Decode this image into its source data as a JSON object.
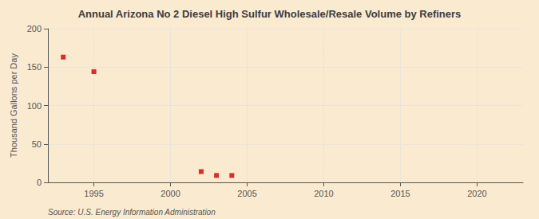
{
  "chart_data": {
    "type": "scatter",
    "title": "Annual Arizona No 2 Diesel High Sulfur Wholesale/Resale Volume by Refiners",
    "ylabel": "Thousand Gallons per Day",
    "annotations": [
      "Source: U.S. Energy Information Administration"
    ],
    "x": [
      1993,
      1995,
      2002,
      2003,
      2004
    ],
    "values": [
      163,
      144,
      14,
      9,
      9
    ],
    "color": "#cc0000",
    "marker": "square",
    "xlim": [
      1992,
      2023
    ],
    "ylim": [
      0,
      200
    ],
    "xticks": [
      1995,
      2000,
      2005,
      2010,
      2015,
      2020
    ],
    "yticks": [
      0,
      50,
      100,
      150,
      200
    ],
    "grid": true
  }
}
